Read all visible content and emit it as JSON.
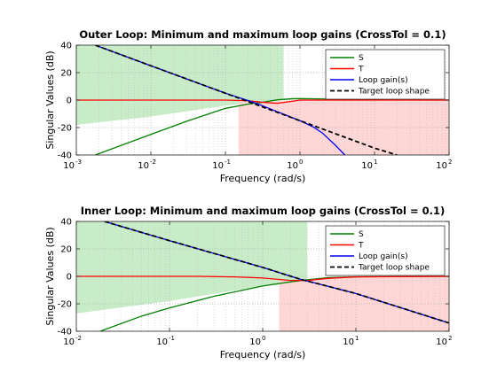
{
  "chart_data": [
    {
      "type": "line",
      "title": "Outer Loop: Minimum and maximum loop gains (CrossTol = 0.1)",
      "xlabel": "Frequency (rad/s)",
      "ylabel": "Singular Values (dB)",
      "xscale": "log",
      "xlim": [
        0.001,
        100
      ],
      "ylim": [
        -40,
        40
      ],
      "xtick_exponents": [
        -3,
        -2,
        -1,
        0,
        1,
        2
      ],
      "yticks": [
        40,
        20,
        0,
        -20,
        -40
      ],
      "grid": true,
      "legend_placement": "top-right",
      "shaded_regions": [
        {
          "name": "min-gain-region",
          "color": "#c8ecc8",
          "x": [
            0.001,
            0.01,
            0.1,
            0.3,
            0.6
          ],
          "upper": [
            40,
            40,
            40,
            40,
            40
          ],
          "lower": [
            -18,
            -12,
            -4,
            -1.5,
            0
          ]
        },
        {
          "name": "max-gain-region",
          "color": "#ffd6d6",
          "x": [
            0.15,
            0.3,
            1,
            10,
            100
          ],
          "upper": [
            -1,
            -1.5,
            0,
            0,
            0
          ],
          "lower": [
            -40,
            -40,
            -40,
            -40,
            -40
          ]
        }
      ],
      "series": [
        {
          "name": "S",
          "color": "#008000",
          "x": [
            0.0018,
            0.003,
            0.01,
            0.03,
            0.1,
            0.2,
            0.3,
            0.5,
            0.8,
            1,
            2,
            5,
            10,
            100
          ],
          "values": [
            -40,
            -35.5,
            -25,
            -15.5,
            -6,
            -3,
            -1.8,
            0.2,
            1,
            1.1,
            0.8,
            0.4,
            0.2,
            0
          ]
        },
        {
          "name": "T",
          "color": "#ff0000",
          "x": [
            0.001,
            0.1,
            0.2,
            0.3,
            0.4,
            0.5,
            0.6,
            0.8,
            1,
            10,
            100
          ],
          "values": [
            0,
            0,
            -0.5,
            -1.5,
            -2,
            -2.3,
            -1.8,
            -0.8,
            0,
            0,
            0
          ]
        },
        {
          "name": "Loop gain(s)",
          "color": "#0000ff",
          "x": [
            0.0018,
            0.01,
            0.1,
            0.25,
            0.5,
            1,
            1.5,
            2,
            3,
            4
          ],
          "values": [
            40,
            25,
            5,
            -2,
            -8.5,
            -15,
            -19.5,
            -24,
            -33,
            -40
          ]
        },
        {
          "name": "Target loop shape",
          "color": "#000000",
          "dash": true,
          "x": [
            0.0018,
            0.01,
            0.1,
            1,
            10,
            20
          ],
          "values": [
            40,
            25,
            5,
            -15,
            -35,
            -40
          ]
        }
      ]
    },
    {
      "type": "line",
      "title": "Inner Loop: Minimum and maximum loop gains (CrossTol = 0.1)",
      "xlabel": "Frequency (rad/s)",
      "ylabel": "Singular Values (dB)",
      "xscale": "log",
      "xlim": [
        0.01,
        100
      ],
      "ylim": [
        -40,
        40
      ],
      "xtick_exponents": [
        -2,
        -1,
        0,
        1,
        2
      ],
      "yticks": [
        40,
        20,
        0,
        -20,
        -40
      ],
      "grid": true,
      "legend_placement": "top-right",
      "shaded_regions": [
        {
          "name": "min-gain-region",
          "color": "#c8ecc8",
          "x": [
            0.01,
            0.1,
            1,
            2,
            3
          ],
          "upper": [
            40,
            40,
            40,
            40,
            40
          ],
          "lower": [
            -27,
            -18,
            -7,
            -5,
            -3
          ]
        },
        {
          "name": "max-gain-region",
          "color": "#ffd6d6",
          "x": [
            1.5,
            3,
            10,
            100
          ],
          "upper": [
            -3,
            -3,
            -0.5,
            0
          ],
          "lower": [
            -40,
            -40,
            -40,
            -40
          ]
        }
      ],
      "series": [
        {
          "name": "S",
          "color": "#008000",
          "x": [
            0.018,
            0.05,
            0.1,
            0.3,
            1,
            2,
            3,
            5,
            10,
            100
          ],
          "values": [
            -40,
            -29,
            -23,
            -14.5,
            -7,
            -4,
            -2.5,
            -1,
            -0.3,
            0
          ]
        },
        {
          "name": "T",
          "color": "#ff0000",
          "x": [
            0.01,
            0.2,
            0.5,
            1,
            2,
            3,
            5,
            10,
            100
          ],
          "values": [
            0,
            0,
            -0.4,
            -1.2,
            -3,
            -3,
            -1.5,
            -0.4,
            0
          ]
        },
        {
          "name": "Loop gain(s)",
          "color": "#0000ff",
          "x": [
            0.02,
            0.1,
            1,
            2.5,
            10,
            100
          ],
          "values": [
            40,
            26,
            6.5,
            -2,
            -12.5,
            -34
          ]
        },
        {
          "name": "Target loop shape",
          "color": "#000000",
          "dash": true,
          "x": [
            0.02,
            0.1,
            1,
            2.5,
            10,
            100
          ],
          "values": [
            40,
            26,
            6.5,
            -2,
            -12.5,
            -34
          ]
        }
      ]
    }
  ]
}
